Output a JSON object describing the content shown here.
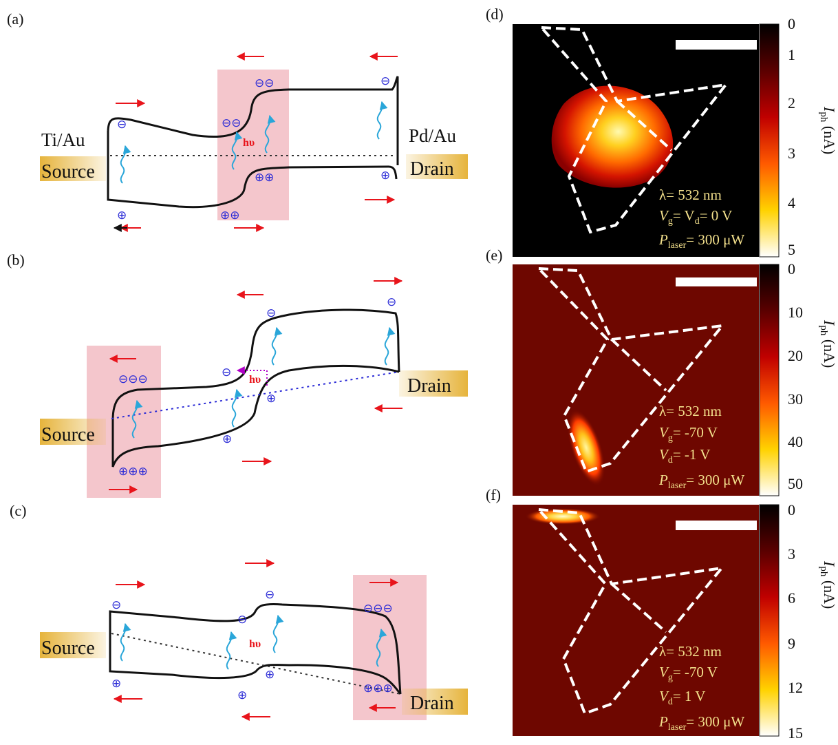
{
  "panels": {
    "a": "(a)",
    "b": "(b)",
    "c": "(c)",
    "d": "(d)",
    "e": "(e)",
    "f": "(f)"
  },
  "schematic": {
    "ti_au": "Ti/Au",
    "pd_au": "Pd/Au",
    "source": "Source",
    "drain": "Drain",
    "hv": "hυ",
    "electron": "⊖",
    "hole": "⊕"
  },
  "maps": {
    "d": {
      "lambda": "λ= 532 nm",
      "vgvd_main": "V",
      "vg_eq_vd": "= V",
      "vgvd_tail": "= 0 V",
      "sub_g": "g",
      "sub_d": "d",
      "p_main": "P",
      "p_sub": "laser",
      "p_tail": "= 300 μW",
      "colorbar_ticks": [
        "0",
        "1",
        "2",
        "3",
        "4",
        "5"
      ],
      "colorbar_label_main": "I",
      "colorbar_label_sub": "ph",
      "colorbar_label_unit": " (nA)"
    },
    "e": {
      "lambda": "λ= 532 nm",
      "vg": "= -70 V",
      "vd": "= -1 V",
      "p_tail": "= 300 μW",
      "colorbar_ticks": [
        "0",
        "10",
        "20",
        "30",
        "40",
        "50"
      ]
    },
    "f": {
      "lambda": "λ= 532 nm",
      "vg": "= -70 V",
      "vd": "= 1 V",
      "p_tail": "= 300 μW",
      "colorbar_ticks": [
        "0",
        "3",
        "6",
        "9",
        "12",
        "15"
      ]
    }
  },
  "colors": {
    "arrow": "#e8141b",
    "carrier": "#2a2ad6",
    "wavy": "#2aa6d9",
    "highlight": "#f4c6cc",
    "contact": "#e6b43c",
    "map_text": "#f3e08c"
  }
}
